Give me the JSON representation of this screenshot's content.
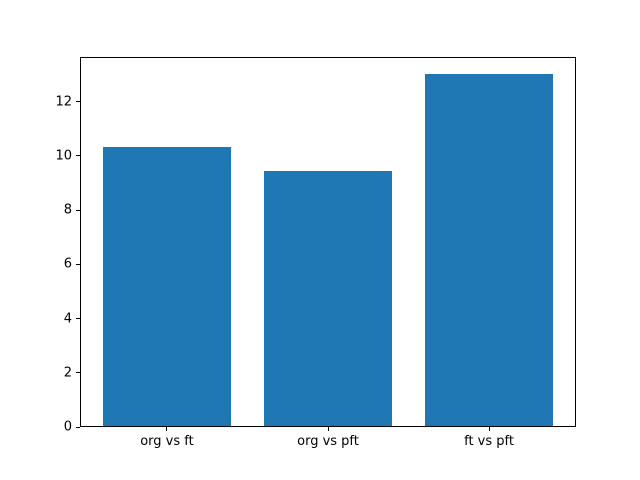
{
  "figure": {
    "background": "#ffffff",
    "axes_background": "#ffffff",
    "spine_color": "#000000",
    "tick_color": "#000000"
  },
  "chart_data": {
    "type": "bar",
    "categories": [
      "org vs ft",
      "org vs pft",
      "ft vs pft"
    ],
    "values": [
      10.3,
      9.4,
      13.0
    ],
    "bar_color": "#1f77b4",
    "ylim": [
      0,
      13.65
    ],
    "yticks": [
      0,
      2,
      4,
      6,
      8,
      10,
      12
    ],
    "ytick_labels": [
      "0",
      "2",
      "4",
      "6",
      "8",
      "10",
      "12"
    ],
    "grid": false,
    "legend": false
  }
}
